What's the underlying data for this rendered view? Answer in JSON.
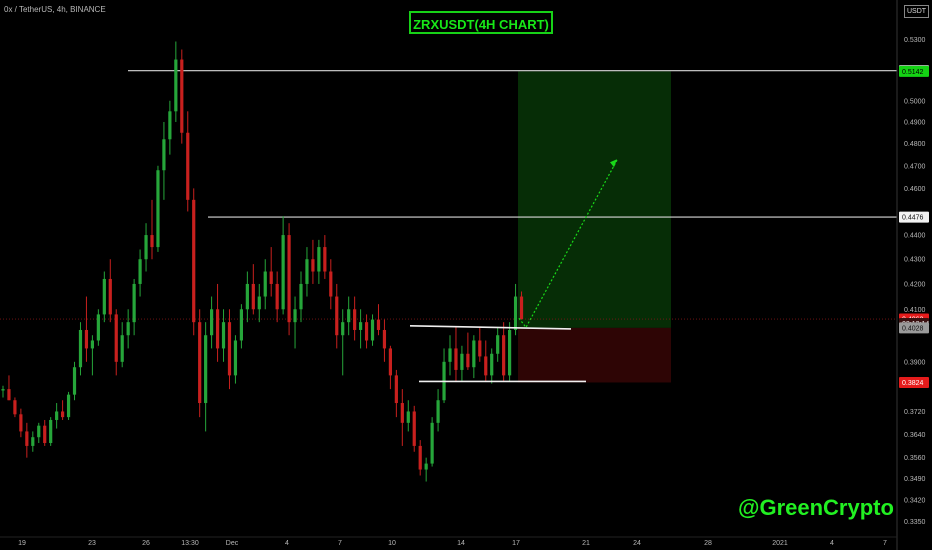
{
  "header": {
    "symbol_info": "0x / TetherUS, 4h, BINANCE",
    "title": "ZRXUSDT(4H CHART)",
    "currency": "USDT"
  },
  "watermark": "@GreenCrypto",
  "colors": {
    "background": "#000000",
    "up_candle": "#26a63a",
    "down_candle": "#c8201e",
    "title_green": "#17e817",
    "profit_zone": "#062d06",
    "loss_zone": "#2e0505",
    "price_red": "#e51b1b",
    "target_green": "#19d919"
  },
  "chart_data": {
    "type": "candlestick",
    "y_scale": "log",
    "ylim": [
      0.332,
      0.542
    ],
    "y_ticks": [
      "0.5300",
      "0.5145",
      "0.5000",
      "0.4900",
      "0.4800",
      "0.4700",
      "0.4600",
      "0.4476",
      "0.4400",
      "0.4300",
      "0.4200",
      "0.4100",
      "0.4062",
      "0.4028",
      "0.3900",
      "0.3824",
      "0.3720",
      "0.3640",
      "0.3560",
      "0.3490",
      "0.3420",
      "0.3350"
    ],
    "x_ticks": [
      "19",
      "23",
      "26",
      "13:30",
      "Dec",
      "4",
      "7",
      "10",
      "14",
      "17",
      "21",
      "24",
      "28",
      "2021",
      "4",
      "7"
    ],
    "price_tags": [
      {
        "label": "0.5145",
        "value": 0.5145,
        "style": "white"
      },
      {
        "label": "0.5142",
        "value": 0.5142,
        "style": "green"
      },
      {
        "label": "0.4476",
        "value": 0.4476,
        "style": "white"
      },
      {
        "label": "0.4062",
        "value": 0.4062,
        "style": "red"
      },
      {
        "label": "02:12:14",
        "value": 0.4045,
        "style": "dark"
      },
      {
        "label": "0.4028",
        "value": 0.4028,
        "style": "gray"
      },
      {
        "label": "0.3824",
        "value": 0.3824,
        "style": "red"
      }
    ],
    "current_price": 0.4062,
    "resistance_levels": [
      0.5145,
      0.4476
    ],
    "range_top": [
      0.4036,
      0.4024
    ],
    "range_bottom": 0.3828,
    "position": {
      "entry": 0.4028,
      "target": 0.5142,
      "stop": 0.3824
    },
    "projection": [
      [
        0.4028,
        0.403
      ],
      [
        0.4028,
        0.4725
      ]
    ],
    "candles": [
      [
        0.3795,
        0.3812,
        0.377,
        0.38
      ],
      [
        0.38,
        0.385,
        0.376,
        0.376
      ],
      [
        0.376,
        0.377,
        0.37,
        0.371
      ],
      [
        0.371,
        0.373,
        0.363,
        0.365
      ],
      [
        0.365,
        0.368,
        0.356,
        0.36
      ],
      [
        0.36,
        0.365,
        0.358,
        0.363
      ],
      [
        0.363,
        0.368,
        0.361,
        0.367
      ],
      [
        0.367,
        0.369,
        0.36,
        0.361
      ],
      [
        0.361,
        0.37,
        0.36,
        0.369
      ],
      [
        0.369,
        0.375,
        0.366,
        0.372
      ],
      [
        0.372,
        0.376,
        0.369,
        0.37
      ],
      [
        0.37,
        0.379,
        0.369,
        0.378
      ],
      [
        0.378,
        0.39,
        0.376,
        0.388
      ],
      [
        0.388,
        0.405,
        0.385,
        0.402
      ],
      [
        0.402,
        0.415,
        0.39,
        0.395
      ],
      [
        0.395,
        0.4,
        0.385,
        0.398
      ],
      [
        0.398,
        0.41,
        0.396,
        0.408
      ],
      [
        0.408,
        0.425,
        0.405,
        0.422
      ],
      [
        0.422,
        0.43,
        0.405,
        0.408
      ],
      [
        0.408,
        0.41,
        0.385,
        0.39
      ],
      [
        0.39,
        0.405,
        0.388,
        0.4
      ],
      [
        0.4,
        0.41,
        0.395,
        0.405
      ],
      [
        0.405,
        0.422,
        0.4,
        0.42
      ],
      [
        0.42,
        0.434,
        0.415,
        0.43
      ],
      [
        0.43,
        0.445,
        0.425,
        0.44
      ],
      [
        0.44,
        0.455,
        0.43,
        0.435
      ],
      [
        0.435,
        0.47,
        0.433,
        0.468
      ],
      [
        0.468,
        0.49,
        0.455,
        0.482
      ],
      [
        0.482,
        0.5,
        0.475,
        0.495
      ],
      [
        0.495,
        0.529,
        0.49,
        0.52
      ],
      [
        0.52,
        0.525,
        0.48,
        0.485
      ],
      [
        0.485,
        0.495,
        0.45,
        0.455
      ],
      [
        0.455,
        0.46,
        0.4,
        0.405
      ],
      [
        0.405,
        0.41,
        0.37,
        0.375
      ],
      [
        0.375,
        0.405,
        0.365,
        0.4
      ],
      [
        0.4,
        0.415,
        0.395,
        0.41
      ],
      [
        0.41,
        0.42,
        0.39,
        0.395
      ],
      [
        0.395,
        0.41,
        0.39,
        0.405
      ],
      [
        0.405,
        0.41,
        0.38,
        0.385
      ],
      [
        0.385,
        0.4,
        0.382,
        0.398
      ],
      [
        0.398,
        0.412,
        0.395,
        0.41
      ],
      [
        0.41,
        0.425,
        0.405,
        0.42
      ],
      [
        0.42,
        0.428,
        0.408,
        0.41
      ],
      [
        0.41,
        0.42,
        0.405,
        0.415
      ],
      [
        0.415,
        0.43,
        0.41,
        0.425
      ],
      [
        0.425,
        0.435,
        0.415,
        0.42
      ],
      [
        0.42,
        0.425,
        0.405,
        0.41
      ],
      [
        0.41,
        0.448,
        0.408,
        0.44
      ],
      [
        0.44,
        0.445,
        0.4,
        0.405
      ],
      [
        0.405,
        0.415,
        0.395,
        0.41
      ],
      [
        0.41,
        0.425,
        0.405,
        0.42
      ],
      [
        0.42,
        0.435,
        0.415,
        0.43
      ],
      [
        0.43,
        0.438,
        0.42,
        0.425
      ],
      [
        0.425,
        0.438,
        0.42,
        0.435
      ],
      [
        0.435,
        0.44,
        0.422,
        0.425
      ],
      [
        0.425,
        0.43,
        0.41,
        0.415
      ],
      [
        0.415,
        0.42,
        0.395,
        0.4
      ],
      [
        0.4,
        0.41,
        0.385,
        0.405
      ],
      [
        0.405,
        0.415,
        0.4,
        0.41
      ],
      [
        0.41,
        0.415,
        0.398,
        0.402
      ],
      [
        0.402,
        0.41,
        0.395,
        0.405
      ],
      [
        0.405,
        0.408,
        0.395,
        0.398
      ],
      [
        0.398,
        0.408,
        0.396,
        0.406
      ],
      [
        0.406,
        0.412,
        0.4,
        0.402
      ],
      [
        0.402,
        0.406,
        0.39,
        0.395
      ],
      [
        0.395,
        0.396,
        0.38,
        0.385
      ],
      [
        0.385,
        0.387,
        0.37,
        0.375
      ],
      [
        0.375,
        0.38,
        0.36,
        0.368
      ],
      [
        0.368,
        0.376,
        0.365,
        0.372
      ],
      [
        0.372,
        0.374,
        0.358,
        0.36
      ],
      [
        0.36,
        0.362,
        0.35,
        0.352
      ],
      [
        0.352,
        0.356,
        0.348,
        0.354
      ],
      [
        0.354,
        0.37,
        0.353,
        0.368
      ],
      [
        0.368,
        0.38,
        0.365,
        0.376
      ],
      [
        0.376,
        0.395,
        0.375,
        0.39
      ],
      [
        0.39,
        0.4,
        0.385,
        0.395
      ],
      [
        0.395,
        0.403,
        0.383,
        0.387
      ],
      [
        0.387,
        0.396,
        0.383,
        0.393
      ],
      [
        0.393,
        0.401,
        0.387,
        0.388
      ],
      [
        0.388,
        0.4,
        0.384,
        0.398
      ],
      [
        0.398,
        0.403,
        0.39,
        0.392
      ],
      [
        0.392,
        0.398,
        0.383,
        0.385
      ],
      [
        0.385,
        0.395,
        0.382,
        0.393
      ],
      [
        0.393,
        0.403,
        0.39,
        0.4
      ],
      [
        0.4,
        0.405,
        0.383,
        0.385
      ],
      [
        0.385,
        0.405,
        0.383,
        0.402
      ],
      [
        0.402,
        0.42,
        0.4,
        0.415
      ],
      [
        0.415,
        0.417,
        0.406,
        0.4062
      ]
    ]
  }
}
